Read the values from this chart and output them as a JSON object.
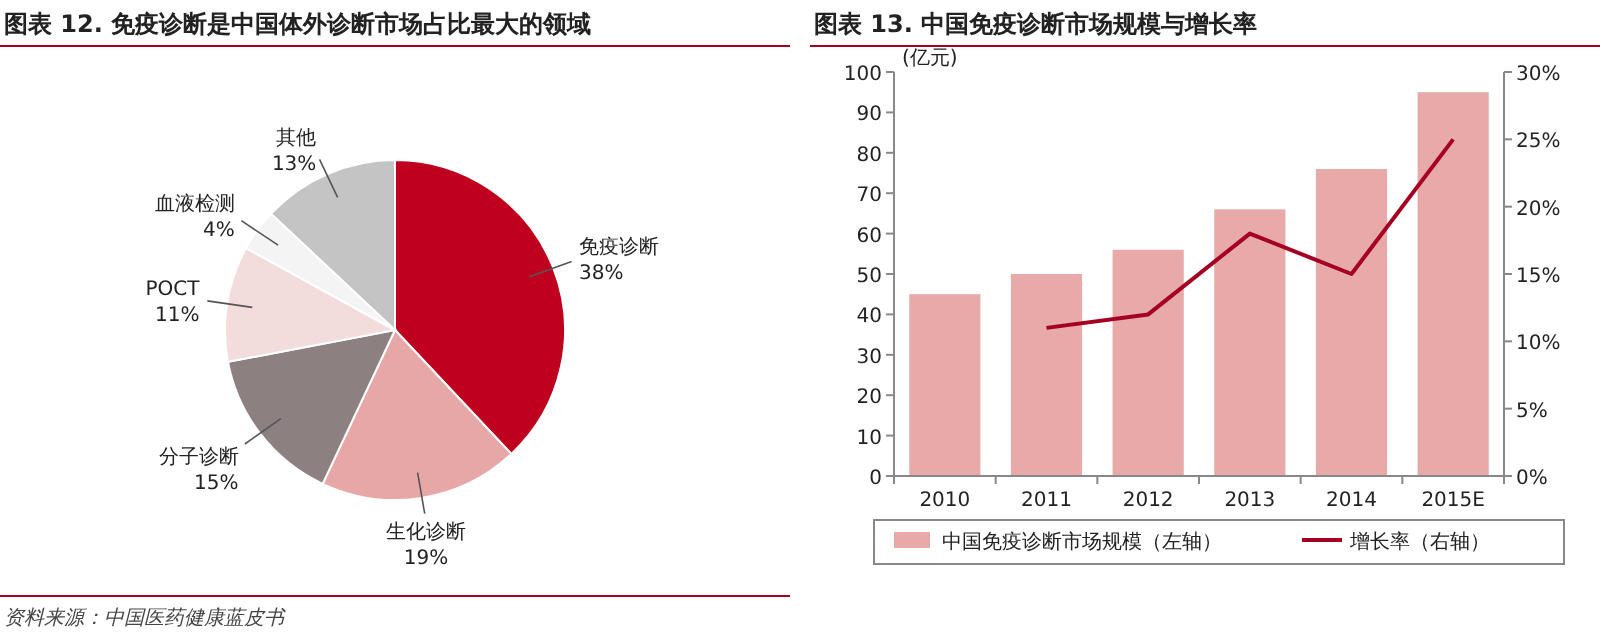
{
  "chart_data": [
    {
      "type": "pie",
      "title": "图表 12. 免疫诊断是中国体外诊断市场占比最大的领域",
      "categories": [
        "免疫诊断",
        "生化诊断",
        "分子诊断",
        "POCT",
        "血液检测",
        "其他"
      ],
      "values": [
        38,
        19,
        15,
        11,
        4,
        13
      ],
      "value_labels": [
        "38%",
        "19%",
        "15%",
        "11%",
        "4%",
        "13%"
      ],
      "colors": [
        "#c0001f",
        "#e8a7a7",
        "#8c8080",
        "#f2dcdc",
        "#f4f4f4",
        "#c4c4c4"
      ],
      "annotations": [
        "资料来源：中国医药健康蓝皮书"
      ]
    },
    {
      "type": "bar",
      "title": "图表 13. 中国免疫诊断市场规模与增长率",
      "ylabel": "(亿元)",
      "categories": [
        "2010",
        "2011",
        "2012",
        "2013",
        "2014",
        "2015E"
      ],
      "series": [
        {
          "name": "中国免疫诊断市场规模（左轴）",
          "color": "#e8a9a9",
          "values": [
            45,
            50,
            56,
            66,
            76,
            95
          ]
        },
        {
          "name": "增长率（右轴）",
          "type": "line",
          "axis": "y2",
          "color": "#a50021",
          "values": [
            null,
            11,
            12,
            18,
            15,
            25
          ]
        }
      ],
      "ylim": [
        0,
        100
      ],
      "yticks": [
        0,
        10,
        20,
        30,
        40,
        50,
        60,
        70,
        80,
        90,
        100
      ],
      "y2lim": [
        0,
        30
      ],
      "y2ticks": [
        {
          "value": 0,
          "label": "0%"
        },
        {
          "value": 5,
          "label": "5%"
        },
        {
          "value": 10,
          "label": "10%"
        },
        {
          "value": 15,
          "label": "15%"
        },
        {
          "value": 20,
          "label": "20%"
        },
        {
          "value": 25,
          "label": "25%"
        },
        {
          "value": 30,
          "label": "30%"
        }
      ],
      "legend": "bottom",
      "grid": false,
      "marker": "none"
    }
  ]
}
